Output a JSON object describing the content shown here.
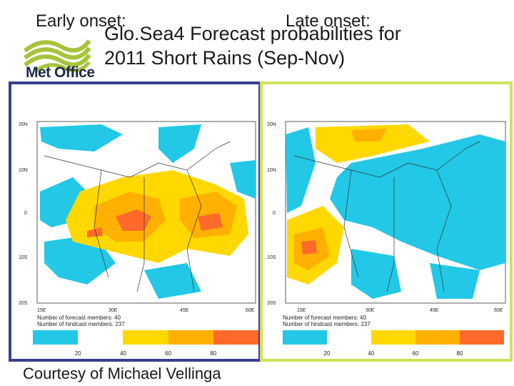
{
  "header": {
    "logo_text": "Met Office",
    "title_line1": "Glo.Sea4 Forecast probabilities for",
    "title_line2": "2011 Short Rains (Sep-Nov)"
  },
  "panels": {
    "left": {
      "label": "Early onset:",
      "members": "Number of forecast members: 40",
      "hindcast": "Number of hindcast members: 237"
    },
    "right": {
      "label": "Late onset:",
      "members": "Number of forecast members: 40",
      "hindcast": "Number of hindcast members: 237"
    }
  },
  "axes": {
    "lat_ticks": [
      "20N",
      "10N",
      "0",
      "10S",
      "20S"
    ],
    "lon_ticks": [
      "15E",
      "30E",
      "45E",
      "60E"
    ]
  },
  "scale": {
    "ticks": [
      "20",
      "40",
      "60",
      "80"
    ],
    "colors": [
      "#22c8e6",
      "#ffffff",
      "#ffd800",
      "#ffb000",
      "#ff6a2a"
    ]
  },
  "footer": {
    "credit": "Courtesy of Michael Vellinga"
  },
  "colors": {
    "left_border": "#3b3f8f",
    "right_border": "#cde35a",
    "cyan": "#22c8e6",
    "yellow": "#ffd800",
    "orange": "#ffb000",
    "red": "#ff6a2a"
  }
}
